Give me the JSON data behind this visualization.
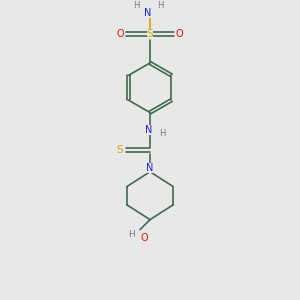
{
  "bg_color": "#e8e8e8",
  "bond_color": "#3d6b50",
  "S_color": "#ccaa00",
  "O_color": "#ee1100",
  "N_color": "#1a1aee",
  "H_color": "#777777",
  "line_width": 1.2,
  "figsize": [
    3.0,
    3.0
  ],
  "dpi": 100,
  "xlim": [
    0,
    6
  ],
  "ylim": [
    0,
    9
  ]
}
